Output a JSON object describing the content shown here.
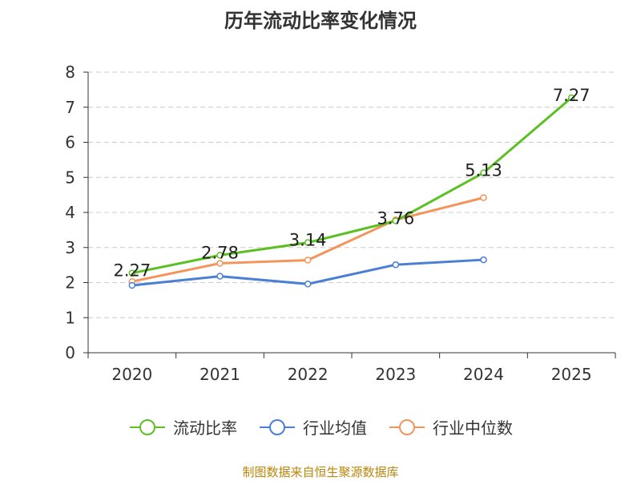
{
  "chart_data": {
    "type": "line",
    "title": "历年流动比率变化情况",
    "categories": [
      "2020",
      "2021",
      "2022",
      "2023",
      "2024",
      "2025"
    ],
    "ylim": [
      0,
      8
    ],
    "yticks": [
      "0",
      "1",
      "2",
      "3",
      "4",
      "5",
      "6",
      "7",
      "8"
    ],
    "grid": true,
    "legend_position": "bottom",
    "series": [
      {
        "name": "流动比率",
        "color": "#5cbf24",
        "values": [
          2.27,
          2.78,
          3.14,
          3.76,
          5.13,
          7.27
        ],
        "labels": [
          "2.27",
          "2.78",
          "3.14",
          "3.76",
          "5.13",
          "7.27"
        ]
      },
      {
        "name": "行业均值",
        "color": "#4a7fd4",
        "values": [
          1.92,
          2.18,
          1.96,
          2.51,
          2.65,
          null
        ]
      },
      {
        "name": "行业中位数",
        "color": "#f4935a",
        "values": [
          2.03,
          2.55,
          2.64,
          3.79,
          4.42,
          null
        ]
      }
    ]
  },
  "footer": {
    "source": "制图数据来自恒生聚源数据库"
  }
}
